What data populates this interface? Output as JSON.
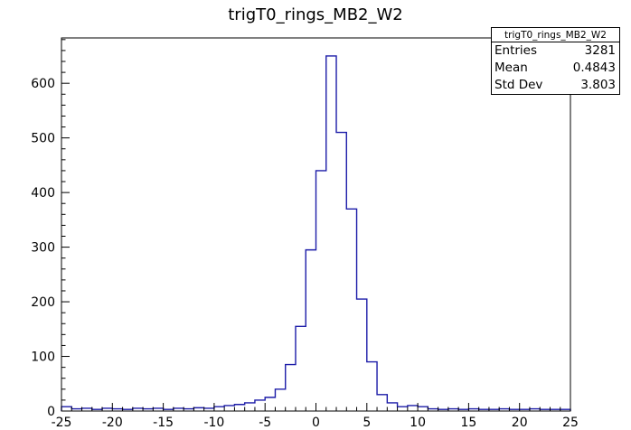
{
  "title": "trigT0_rings_MB2_W2",
  "stats": {
    "header": "trigT0_rings_MB2_W2",
    "rows": [
      {
        "label": "Entries",
        "value": "3281"
      },
      {
        "label": "Mean",
        "value": "0.4843"
      },
      {
        "label": "Std Dev",
        "value": "3.803"
      }
    ]
  },
  "chart_data": {
    "type": "bar",
    "subtype": "histogram-step",
    "title": "trigT0_rings_MB2_W2",
    "xlabel": "",
    "ylabel": "",
    "x_start": -25,
    "bin_width": 1,
    "values": [
      8,
      4,
      5,
      3,
      5,
      4,
      3,
      5,
      4,
      5,
      3,
      5,
      4,
      6,
      5,
      8,
      10,
      12,
      15,
      20,
      25,
      40,
      85,
      155,
      295,
      440,
      650,
      510,
      370,
      205,
      90,
      30,
      15,
      8,
      10,
      8,
      4,
      3,
      4,
      3,
      4,
      3,
      3,
      4,
      3,
      3,
      4,
      3,
      3,
      3
    ],
    "xlim": [
      -25,
      25
    ],
    "ylim": [
      0,
      683
    ],
    "x_ticks": [
      -25,
      -20,
      -15,
      -10,
      -5,
      0,
      5,
      10,
      15,
      20,
      25
    ],
    "x_minor_step": 1,
    "y_ticks": [
      0,
      100,
      200,
      300,
      400,
      500,
      600
    ],
    "y_minor_step": 20,
    "grid": false,
    "legend": "none",
    "line_color": "#1c1ca8",
    "axis_color": "#000000"
  }
}
